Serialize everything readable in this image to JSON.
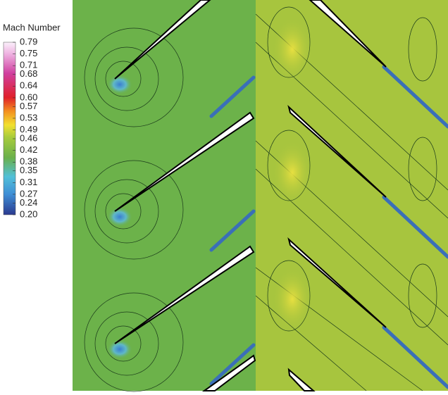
{
  "chart_data": {
    "type": "contour",
    "colorbar": {
      "title": "Mach Number",
      "clim": [
        0.2,
        0.79
      ],
      "ticks": [
        0.79,
        0.75,
        0.71,
        0.68,
        0.64,
        {
          "value": 0.6,
          "label": "0.60"
        },
        0.57,
        0.53,
        0.49,
        0.46,
        0.42,
        0.38,
        0.35,
        0.31,
        0.27,
        0.24,
        {
          "value": 0.2,
          "label": "0.20"
        }
      ]
    }
  }
}
